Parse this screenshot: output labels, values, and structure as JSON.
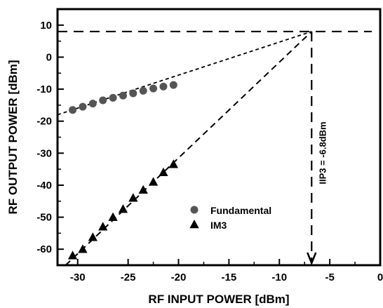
{
  "chart_data": {
    "type": "scatter",
    "title": "",
    "xlabel": "RF INPUT POWER [dBm]",
    "ylabel": "RF OUTPUT POWER [dBm]",
    "xlim": [
      -32,
      0
    ],
    "ylim": [
      -65,
      15
    ],
    "x_ticks": [
      -30,
      -25,
      -20,
      -15,
      -10,
      -5,
      0
    ],
    "y_ticks": [
      -60,
      -50,
      -40,
      -30,
      -20,
      -10,
      0,
      10
    ],
    "grid": false,
    "legend_position": "lower-center",
    "series": [
      {
        "name": "Fundamental",
        "marker": "circle",
        "color": "#555555",
        "x": [
          -30.5,
          -29.5,
          -28.5,
          -27.5,
          -26.5,
          -25.5,
          -24.5,
          -23.5,
          -22.5,
          -21.5,
          -20.5
        ],
        "y": [
          -16.5,
          -15.5,
          -14.5,
          -13.5,
          -12.7,
          -12.0,
          -11.3,
          -10.5,
          -9.8,
          -9.2,
          -8.7
        ]
      },
      {
        "name": "IM3",
        "marker": "triangle",
        "color": "#000000",
        "x": [
          -30.5,
          -29.5,
          -28.5,
          -27.5,
          -26.5,
          -25.5,
          -24.5,
          -23.5,
          -22.5,
          -21.5,
          -20.5
        ],
        "y": [
          -62.0,
          -60.0,
          -56.3,
          -53.0,
          -50.0,
          -47.5,
          -44.0,
          -41.5,
          -39.0,
          -36.0,
          -33.5
        ]
      }
    ],
    "extrapolation_lines": [
      {
        "of": "Fundamental",
        "x": [
          -32,
          -6.8
        ],
        "y": [
          -18,
          8
        ]
      },
      {
        "of": "IM3",
        "x": [
          -31.2,
          -6.8
        ],
        "y": [
          -65,
          8
        ]
      }
    ],
    "intercept": {
      "x": -6.8,
      "y": 8
    },
    "annotation": "IIP3 = -6.8dBm"
  }
}
